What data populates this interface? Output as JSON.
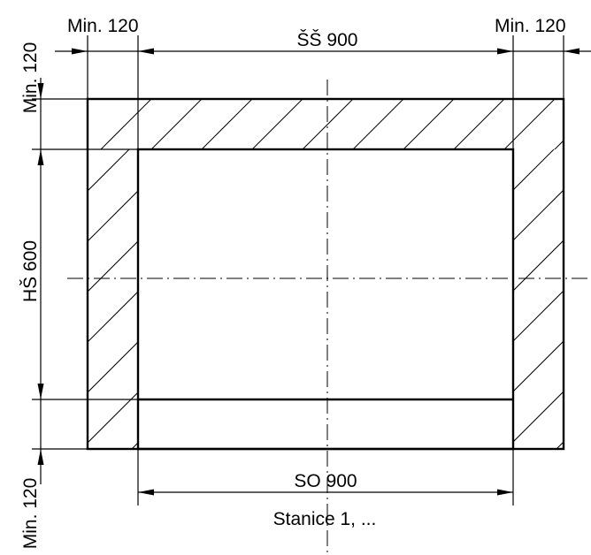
{
  "labels": {
    "top_left_min": "Min. 120",
    "top_right_min": "Min. 120",
    "width_top": "ŠŠ 900",
    "height": "HŠ 600",
    "left_top_min": "Min. 120",
    "left_bottom_min": "Min. 120",
    "width_bottom": "SO 900",
    "caption": "Stanice 1, ..."
  }
}
